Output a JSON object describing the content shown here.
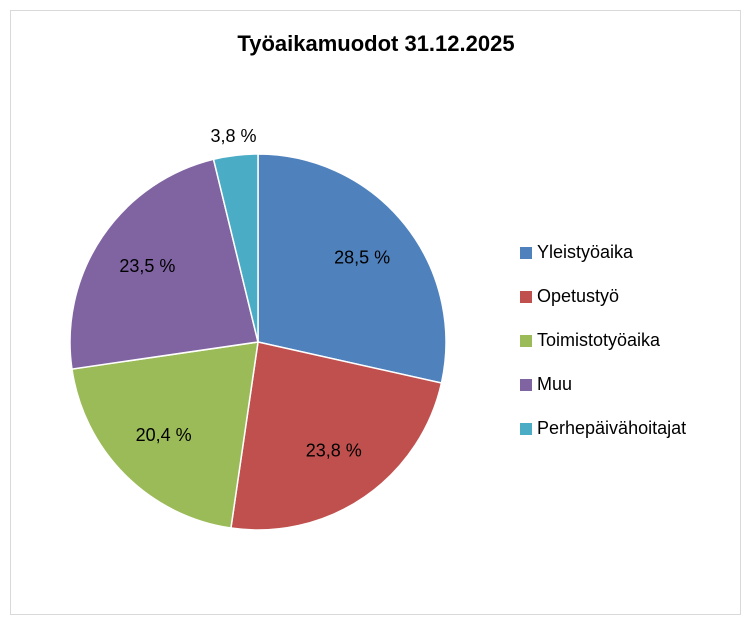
{
  "chart_data": {
    "type": "pie",
    "title": "Työaikamuodot 31.12.2025",
    "categories": [
      "Yleistyöaika",
      "Opetustyö",
      "Toimistotyöaika",
      "Muu",
      "Perhepäivähoitajat"
    ],
    "values": [
      28.5,
      23.8,
      20.4,
      23.5,
      3.8
    ],
    "value_labels": [
      "28,5 %",
      "23,8 %",
      "20,4 %",
      "23,5 %",
      "3,8 %"
    ],
    "colors": [
      "#4f81bd",
      "#c0504d",
      "#9bbb59",
      "#8064a2",
      "#4bacc6"
    ],
    "legend": "right"
  }
}
